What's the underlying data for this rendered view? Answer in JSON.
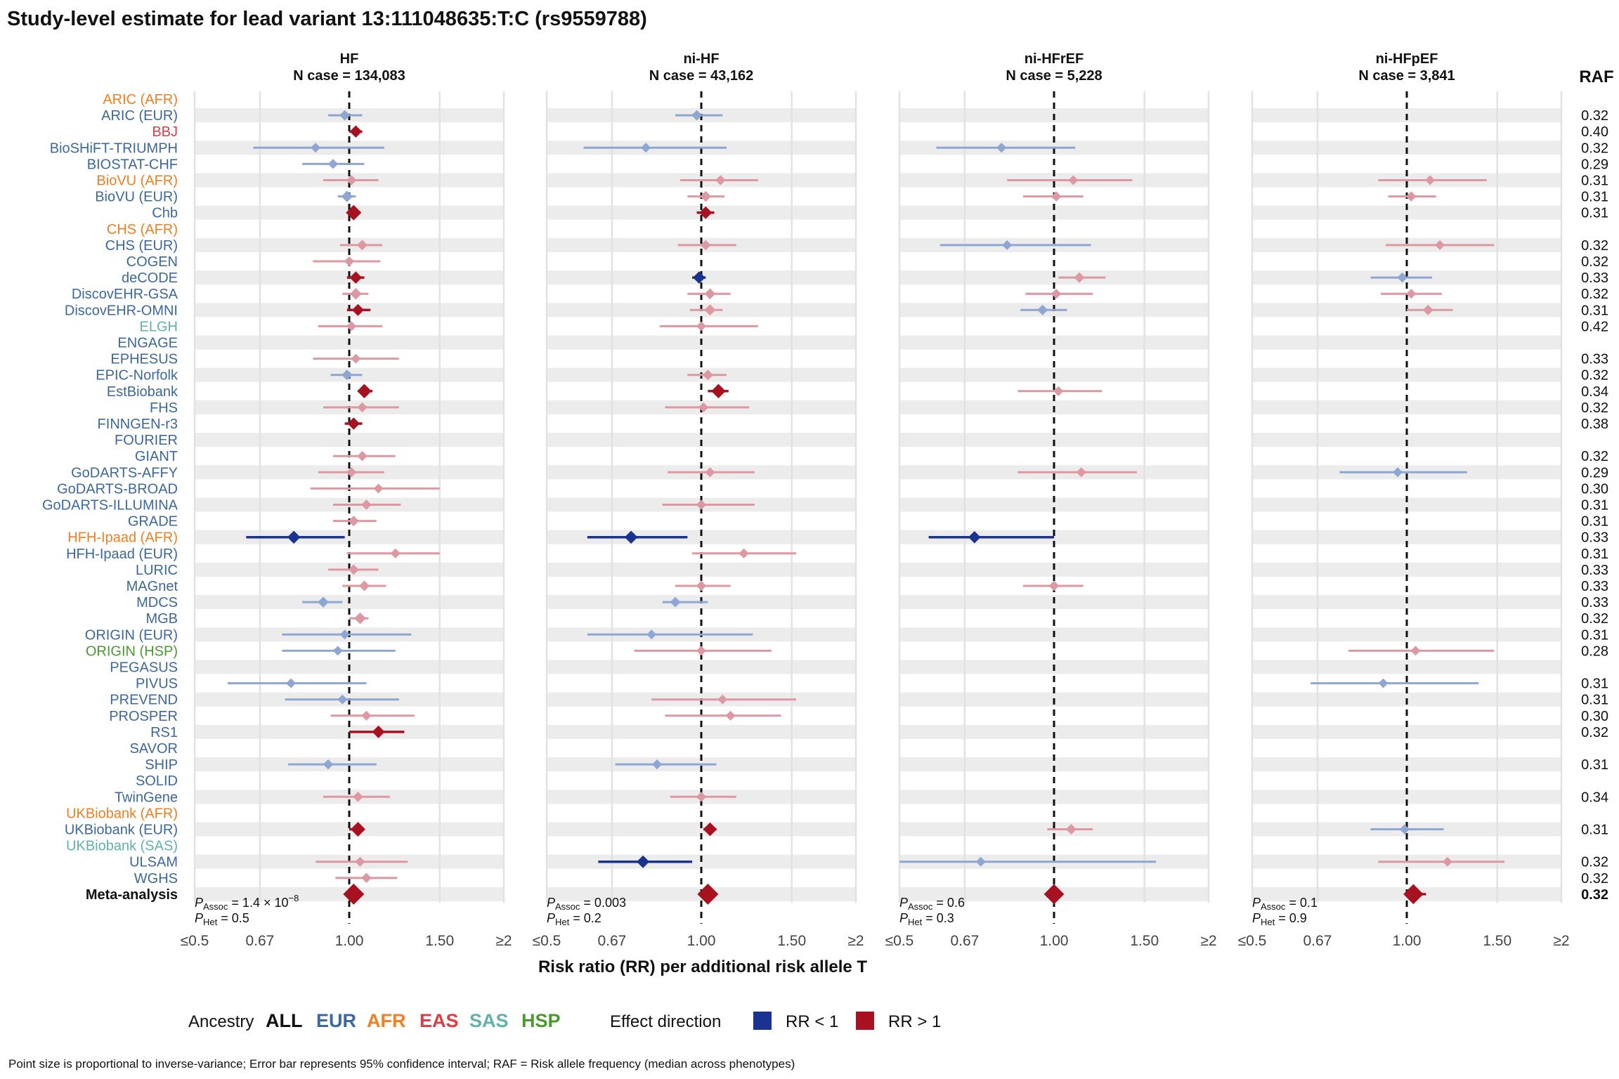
{
  "title": "Study-level estimate for lead variant 13:111048635:T:C (rs9559788)",
  "raf_header": "RAF",
  "colors": {
    "EUR": "#3b68a0",
    "AFR": "#f57f20",
    "EAS": "#e03c48",
    "SAS": "#5fb3a8",
    "HSP": "#4a9a2c",
    "ALL": "#111111",
    "rr_less": "#1a3390",
    "rr_greater": "#a8111f",
    "rr_less_faint": "#8ea6d2",
    "rr_greater_faint": "#de98a2"
  },
  "studies": [
    {
      "name": "ARIC (AFR)",
      "ancestry": "AFR",
      "raf": ""
    },
    {
      "name": "ARIC (EUR)",
      "ancestry": "EUR",
      "raf": "0.32"
    },
    {
      "name": "BBJ",
      "ancestry": "EAS",
      "raf": "0.40"
    },
    {
      "name": "BioSHiFT-TRIUMPH",
      "ancestry": "EUR",
      "raf": "0.32"
    },
    {
      "name": "BIOSTAT-CHF",
      "ancestry": "EUR",
      "raf": "0.29"
    },
    {
      "name": "BioVU (AFR)",
      "ancestry": "AFR",
      "raf": "0.31"
    },
    {
      "name": "BioVU (EUR)",
      "ancestry": "EUR",
      "raf": "0.31"
    },
    {
      "name": "Chb",
      "ancestry": "EUR",
      "raf": "0.31"
    },
    {
      "name": "CHS (AFR)",
      "ancestry": "AFR",
      "raf": ""
    },
    {
      "name": "CHS (EUR)",
      "ancestry": "EUR",
      "raf": "0.32"
    },
    {
      "name": "COGEN",
      "ancestry": "EUR",
      "raf": "0.32"
    },
    {
      "name": "deCODE",
      "ancestry": "EUR",
      "raf": "0.33"
    },
    {
      "name": "DiscovEHR-GSA",
      "ancestry": "EUR",
      "raf": "0.32"
    },
    {
      "name": "DiscovEHR-OMNI",
      "ancestry": "EUR",
      "raf": "0.31"
    },
    {
      "name": "ELGH",
      "ancestry": "SAS",
      "raf": "0.42"
    },
    {
      "name": "ENGAGE",
      "ancestry": "EUR",
      "raf": ""
    },
    {
      "name": "EPHESUS",
      "ancestry": "EUR",
      "raf": "0.33"
    },
    {
      "name": "EPIC-Norfolk",
      "ancestry": "EUR",
      "raf": "0.32"
    },
    {
      "name": "EstBiobank",
      "ancestry": "EUR",
      "raf": "0.34"
    },
    {
      "name": "FHS",
      "ancestry": "EUR",
      "raf": "0.32"
    },
    {
      "name": "FINNGEN-r3",
      "ancestry": "EUR",
      "raf": "0.38"
    },
    {
      "name": "FOURIER",
      "ancestry": "EUR",
      "raf": ""
    },
    {
      "name": "GIANT",
      "ancestry": "EUR",
      "raf": "0.32"
    },
    {
      "name": "GoDARTS-AFFY",
      "ancestry": "EUR",
      "raf": "0.29"
    },
    {
      "name": "GoDARTS-BROAD",
      "ancestry": "EUR",
      "raf": "0.30"
    },
    {
      "name": "GoDARTS-ILLUMINA",
      "ancestry": "EUR",
      "raf": "0.31"
    },
    {
      "name": "GRADE",
      "ancestry": "EUR",
      "raf": "0.31"
    },
    {
      "name": "HFH-Ipaad (AFR)",
      "ancestry": "AFR",
      "raf": "0.33"
    },
    {
      "name": "HFH-Ipaad (EUR)",
      "ancestry": "EUR",
      "raf": "0.31"
    },
    {
      "name": "LURIC",
      "ancestry": "EUR",
      "raf": "0.33"
    },
    {
      "name": "MAGnet",
      "ancestry": "EUR",
      "raf": "0.33"
    },
    {
      "name": "MDCS",
      "ancestry": "EUR",
      "raf": "0.33"
    },
    {
      "name": "MGB",
      "ancestry": "EUR",
      "raf": "0.32"
    },
    {
      "name": "ORIGIN (EUR)",
      "ancestry": "EUR",
      "raf": "0.31"
    },
    {
      "name": "ORIGIN (HSP)",
      "ancestry": "HSP",
      "raf": "0.28"
    },
    {
      "name": "PEGASUS",
      "ancestry": "EUR",
      "raf": ""
    },
    {
      "name": "PIVUS",
      "ancestry": "EUR",
      "raf": "0.31"
    },
    {
      "name": "PREVEND",
      "ancestry": "EUR",
      "raf": "0.31"
    },
    {
      "name": "PROSPER",
      "ancestry": "EUR",
      "raf": "0.30"
    },
    {
      "name": "RS1",
      "ancestry": "EUR",
      "raf": "0.32"
    },
    {
      "name": "SAVOR",
      "ancestry": "EUR",
      "raf": ""
    },
    {
      "name": "SHIP",
      "ancestry": "EUR",
      "raf": "0.31"
    },
    {
      "name": "SOLID",
      "ancestry": "EUR",
      "raf": ""
    },
    {
      "name": "TwinGene",
      "ancestry": "EUR",
      "raf": "0.34"
    },
    {
      "name": "UKBiobank (AFR)",
      "ancestry": "AFR",
      "raf": ""
    },
    {
      "name": "UKBiobank (EUR)",
      "ancestry": "EUR",
      "raf": "0.31"
    },
    {
      "name": "UKBiobank (SAS)",
      "ancestry": "SAS",
      "raf": ""
    },
    {
      "name": "ULSAM",
      "ancestry": "EUR",
      "raf": "0.32"
    },
    {
      "name": "WGHS",
      "ancestry": "EUR",
      "raf": "0.32"
    },
    {
      "name": "Meta-analysis",
      "ancestry": "ALL",
      "raf": "0.32"
    }
  ],
  "chart_data": {
    "type": "forest",
    "title": "Study-level estimate for lead variant 13:111048635:T:C (rs9559788)",
    "xlabel": "Risk ratio (RR) per additional risk allele T",
    "x_scale": "log",
    "xlim": [
      0.5,
      2
    ],
    "x_ticks": [
      0.5,
      0.67,
      1.0,
      1.5,
      2.0
    ],
    "x_tick_labels": [
      "≤0.5",
      "0.67",
      "1.00",
      "1.50",
      "≥2"
    ],
    "reference_line": 1.0,
    "panels": [
      {
        "name": "HF",
        "n_case": "N case = 134,083",
        "p_assoc": "1.4 × 10",
        "p_assoc_exp": "−8",
        "p_het": "0.5",
        "estimates": [
          null,
          [
            0.98,
            0.91,
            1.06,
            0.3
          ],
          [
            1.03,
            1.0,
            1.06,
            0.55
          ],
          [
            0.86,
            0.65,
            1.17,
            0.2
          ],
          [
            0.93,
            0.81,
            1.07,
            0.22
          ],
          [
            1.01,
            0.89,
            1.14,
            0.25
          ],
          [
            0.99,
            0.95,
            1.03,
            0.45
          ],
          [
            1.02,
            0.99,
            1.05,
            1.0
          ],
          null,
          [
            1.06,
            0.96,
            1.16,
            0.3
          ],
          [
            1.0,
            0.85,
            1.15,
            0.22
          ],
          [
            1.03,
            0.99,
            1.07,
            0.55
          ],
          [
            1.03,
            0.97,
            1.09,
            0.45
          ],
          [
            1.04,
            0.99,
            1.1,
            0.5
          ],
          [
            1.01,
            0.87,
            1.16,
            0.22
          ],
          null,
          [
            1.03,
            0.85,
            1.25,
            0.2
          ],
          [
            0.99,
            0.92,
            1.06,
            0.32
          ],
          [
            1.07,
            1.04,
            1.11,
            0.85
          ],
          [
            1.06,
            0.89,
            1.25,
            0.22
          ],
          [
            1.02,
            0.98,
            1.06,
            0.55
          ],
          null,
          [
            1.06,
            0.93,
            1.23,
            0.25
          ],
          [
            1.01,
            0.87,
            1.17,
            0.25
          ],
          [
            1.14,
            0.84,
            1.5,
            0.18
          ],
          [
            1.08,
            0.93,
            1.26,
            0.25
          ],
          [
            1.02,
            0.93,
            1.13,
            0.3
          ],
          [
            0.78,
            0.63,
            0.98,
            0.65
          ],
          [
            1.23,
            0.99,
            1.5,
            0.22
          ],
          [
            1.02,
            0.91,
            1.14,
            0.28
          ],
          [
            1.07,
            0.97,
            1.18,
            0.3
          ],
          [
            0.89,
            0.81,
            0.97,
            0.35
          ],
          [
            1.05,
            1.0,
            1.09,
            0.45
          ],
          [
            0.98,
            0.74,
            1.32,
            0.18
          ],
          [
            0.95,
            0.74,
            1.23,
            0.18
          ],
          null,
          [
            0.77,
            0.58,
            1.08,
            0.2
          ],
          [
            0.97,
            0.75,
            1.25,
            0.2
          ],
          [
            1.08,
            0.92,
            1.34,
            0.22
          ],
          [
            1.14,
            1.0,
            1.28,
            0.6
          ],
          null,
          [
            0.91,
            0.76,
            1.13,
            0.25
          ],
          null,
          [
            1.04,
            0.89,
            1.2,
            0.25
          ],
          null,
          [
            1.04,
            1.0,
            1.07,
            0.9
          ],
          null,
          [
            1.05,
            0.86,
            1.3,
            0.22
          ],
          [
            1.08,
            0.94,
            1.24,
            0.25
          ],
          [
            1.02,
            1.01,
            1.04,
            1.0
          ]
        ]
      },
      {
        "name": "ni-HF",
        "n_case": "N case = 43,162",
        "p_assoc": "0.003",
        "p_assoc_exp": "",
        "p_het": "0.2",
        "estimates": [
          null,
          [
            0.98,
            0.89,
            1.1,
            0.3
          ],
          null,
          [
            0.78,
            0.59,
            1.12,
            0.2
          ],
          null,
          [
            1.09,
            0.91,
            1.29,
            0.25
          ],
          [
            1.02,
            0.94,
            1.11,
            0.35
          ],
          [
            1.02,
            0.98,
            1.06,
            0.6
          ],
          null,
          [
            1.02,
            0.9,
            1.17,
            0.25
          ],
          null,
          [
            0.99,
            0.96,
            1.02,
            0.55
          ],
          [
            1.04,
            0.94,
            1.14,
            0.35
          ],
          [
            1.04,
            0.95,
            1.1,
            0.4
          ],
          [
            1.0,
            0.83,
            1.29,
            0.18
          ],
          null,
          null,
          [
            1.03,
            0.94,
            1.12,
            0.3
          ],
          [
            1.08,
            1.03,
            1.13,
            0.85
          ],
          [
            1.01,
            0.85,
            1.24,
            0.22
          ],
          null,
          null,
          null,
          [
            1.04,
            0.86,
            1.27,
            0.22
          ],
          null,
          [
            1.0,
            0.84,
            1.27,
            0.22
          ],
          null,
          [
            0.73,
            0.6,
            0.94,
            0.65
          ],
          [
            1.21,
            0.96,
            1.53,
            0.22
          ],
          null,
          [
            1.0,
            0.89,
            1.14,
            0.25
          ],
          [
            0.89,
            0.84,
            1.03,
            0.28
          ],
          null,
          [
            0.8,
            0.6,
            1.26,
            0.18
          ],
          [
            1.0,
            0.74,
            1.37,
            0.18
          ],
          null,
          null,
          [
            1.1,
            0.8,
            1.53,
            0.18
          ],
          [
            1.14,
            0.85,
            1.43,
            0.2
          ],
          null,
          null,
          [
            0.82,
            0.68,
            1.07,
            0.22
          ],
          null,
          [
            1.0,
            0.87,
            1.17,
            0.22
          ],
          null,
          [
            1.04,
            1.01,
            1.07,
            0.75
          ],
          null,
          [
            0.77,
            0.63,
            0.96,
            0.6
          ],
          null,
          [
            1.03,
            1.0,
            1.05,
            1.0
          ]
        ]
      },
      {
        "name": "ni-HFrEF",
        "n_case": "N case = 5,228",
        "p_assoc": "0.6",
        "p_assoc_exp": "",
        "p_het": "0.3",
        "estimates": [
          null,
          null,
          null,
          [
            0.79,
            0.59,
            1.1,
            0.22
          ],
          null,
          [
            1.09,
            0.81,
            1.42,
            0.2
          ],
          [
            1.01,
            0.87,
            1.14,
            0.25
          ],
          null,
          null,
          [
            0.81,
            0.6,
            1.18,
            0.2
          ],
          null,
          [
            1.12,
            1.02,
            1.26,
            0.3
          ],
          [
            1.01,
            0.88,
            1.19,
            0.22
          ],
          [
            0.95,
            0.86,
            1.06,
            0.3
          ],
          null,
          null,
          null,
          null,
          [
            1.02,
            0.85,
            1.24,
            0.22
          ],
          null,
          null,
          null,
          null,
          [
            1.13,
            0.85,
            1.45,
            0.2
          ],
          null,
          null,
          null,
          [
            0.7,
            0.57,
            1.0,
            0.55
          ],
          null,
          null,
          [
            1.0,
            0.87,
            1.14,
            0.25
          ],
          null,
          null,
          null,
          null,
          null,
          null,
          null,
          null,
          null,
          null,
          null,
          null,
          null,
          null,
          [
            1.08,
            0.97,
            1.19,
            0.3
          ],
          null,
          [
            0.72,
            0.5,
            1.58,
            0.18
          ],
          null,
          [
            1.0,
            0.97,
            1.04,
            0.8
          ]
        ]
      },
      {
        "name": "ni-HFpEF",
        "n_case": "N case = 3,841",
        "p_assoc": "0.1",
        "p_assoc_exp": "",
        "p_het": "0.9",
        "estimates": [
          null,
          null,
          null,
          null,
          null,
          [
            1.11,
            0.88,
            1.43,
            0.2
          ],
          [
            1.02,
            0.92,
            1.14,
            0.25
          ],
          null,
          null,
          [
            1.16,
            0.91,
            1.48,
            0.2
          ],
          null,
          [
            0.98,
            0.85,
            1.12,
            0.25
          ],
          [
            1.02,
            0.89,
            1.17,
            0.22
          ],
          [
            1.1,
            1.0,
            1.23,
            0.28
          ],
          null,
          null,
          null,
          null,
          null,
          null,
          null,
          null,
          null,
          [
            0.96,
            0.74,
            1.31,
            0.2
          ],
          null,
          null,
          null,
          null,
          null,
          null,
          null,
          null,
          null,
          null,
          [
            1.04,
            0.77,
            1.48,
            0.18
          ],
          null,
          [
            0.9,
            0.65,
            1.38,
            0.18
          ],
          null,
          null,
          null,
          null,
          null,
          null,
          null,
          null,
          [
            0.99,
            0.85,
            1.18,
            0.22
          ],
          null,
          [
            1.2,
            0.88,
            1.55,
            0.18
          ],
          null,
          [
            1.03,
            1.0,
            1.09,
            0.75
          ]
        ]
      }
    ]
  },
  "legend": {
    "ancestry_label": "Ancestry",
    "ancestries": [
      {
        "label": "ALL",
        "key": "ALL"
      },
      {
        "label": "EUR",
        "key": "EUR"
      },
      {
        "label": "AFR",
        "key": "AFR"
      },
      {
        "label": "EAS",
        "key": "EAS"
      },
      {
        "label": "SAS",
        "key": "SAS"
      },
      {
        "label": "HSP",
        "key": "HSP"
      }
    ],
    "effect_label": "Effect direction",
    "effects": [
      {
        "label": "RR < 1",
        "key": "rr_less"
      },
      {
        "label": "RR > 1",
        "key": "rr_greater"
      }
    ]
  },
  "footnote": "Point size is proportional to inverse-variance; Error bar represents 95% confidence interval; RAF = Risk allele frequency (median across phenotypes)",
  "stat_labels": {
    "p_main": "P",
    "assoc_sub": "Assoc",
    "het_sub": "Het",
    "eq": " = "
  }
}
